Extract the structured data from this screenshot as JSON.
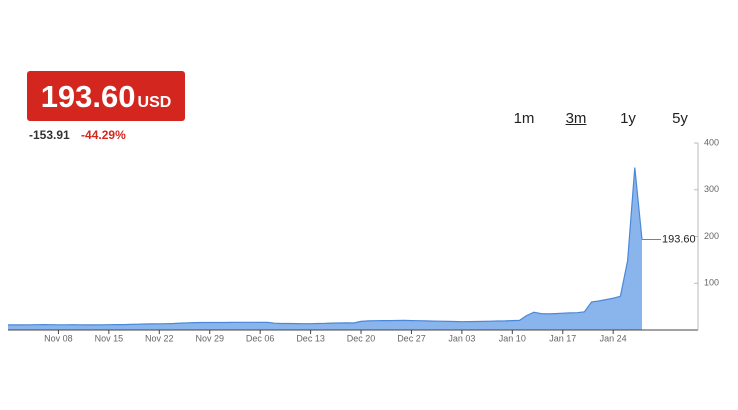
{
  "header": {
    "price": "193.60",
    "currency": "USD",
    "change": "-153.91",
    "change_pct": "-44.29%"
  },
  "ranges": [
    "1m",
    "3m",
    "1y",
    "5y"
  ],
  "chart_data": {
    "type": "area",
    "color": "#8ab4ec",
    "line_color": "#4a88d9",
    "categories": [
      null,
      null,
      null,
      null,
      null,
      null,
      null,
      "Nov 08",
      null,
      null,
      null,
      null,
      null,
      null,
      "Nov 15",
      null,
      null,
      null,
      null,
      null,
      null,
      "Nov 22",
      null,
      null,
      null,
      null,
      null,
      null,
      "Nov 29",
      null,
      null,
      null,
      null,
      null,
      null,
      "Dec 06",
      null,
      null,
      null,
      null,
      null,
      null,
      "Dec 13",
      null,
      null,
      null,
      null,
      null,
      null,
      "Dec 20",
      null,
      null,
      null,
      null,
      null,
      null,
      "Dec 27",
      null,
      null,
      null,
      null,
      null,
      null,
      "Jan 03",
      null,
      null,
      null,
      null,
      null,
      null,
      "Jan 10",
      null,
      null,
      null,
      null,
      null,
      null,
      "Jan 17",
      null,
      null,
      null,
      null,
      null,
      null,
      "Jan 24",
      null,
      null,
      null,
      null
    ],
    "values": [
      11,
      11,
      11,
      11.2,
      11.4,
      11.5,
      11.3,
      11.2,
      11.1,
      11.3,
      11.2,
      11,
      11,
      11.1,
      11.4,
      11.5,
      11.6,
      12,
      12.5,
      12.8,
      13,
      13.2,
      13.5,
      14,
      14.8,
      15.4,
      15.8,
      16,
      16,
      16.1,
      16,
      16.3,
      16.5,
      16.5,
      16.4,
      16.3,
      16.2,
      14.5,
      14,
      13.8,
      13.6,
      13.5,
      13.4,
      13.8,
      14.2,
      14.8,
      15,
      15.2,
      15,
      18.5,
      19.5,
      19.8,
      20,
      20.2,
      20.4,
      20.6,
      20.2,
      19.8,
      19.5,
      19,
      18.8,
      18.5,
      18.2,
      17.8,
      18,
      18.2,
      18.5,
      18.8,
      19.2,
      19.5,
      20,
      20.5,
      31,
      38,
      35,
      34.5,
      35,
      36,
      36.5,
      37,
      39,
      60,
      62,
      65,
      68,
      72,
      147.98,
      347.51,
      193.6
    ],
    "current_label": "193.60",
    "ylim": [
      0,
      400
    ],
    "yticks": [
      100,
      200,
      300,
      400
    ]
  }
}
